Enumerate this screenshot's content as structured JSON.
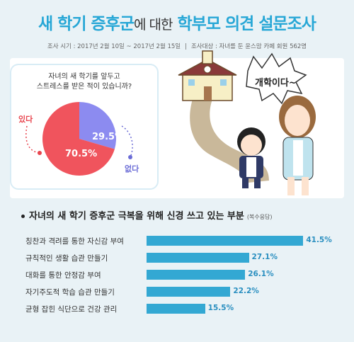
{
  "header": {
    "title_part1": "새 학기 증후군",
    "title_part2": "에 대한",
    "title_part3": "학부모 의견 설문조사",
    "survey_period": "조사 시기 : 2017년 2월 10일 ~ 2017년 2월 15일",
    "survey_target": "조사대상 : 자녀를 둔 윤스맘 카페 회원 562명"
  },
  "illustration": {
    "speech_text": "개학이다~"
  },
  "pie_section": {
    "question_line1": "자녀의 새 학기를 앞두고",
    "question_line2": "스트레스를 받은 적이 있습니까?",
    "yes_label": "있다",
    "no_label": "없다",
    "yes_pct_text": "70.5%",
    "no_pct_text": "29.5%"
  },
  "bar_section": {
    "title": "자녀의 새 학기 증후군 극복을 위해 신경 쓰고 있는 부분",
    "note": "(복수응답)",
    "rows": [
      {
        "label": "칭찬과 격려를 통한 자신감 부여",
        "value_text": "41.5%"
      },
      {
        "label": "규칙적인 생활 습관 만들기",
        "value_text": "27.1%"
      },
      {
        "label": "대화를 통한 안정감 부여",
        "value_text": "26.1%"
      },
      {
        "label": "자기주도적 학습 습관 만들기",
        "value_text": "22.2%"
      },
      {
        "label": "균형 잡힌 식단으로 건강 관리",
        "value_text": "15.5%"
      }
    ]
  },
  "colors": {
    "accent_blue": "#27a7d6",
    "bar_blue": "#33a8d3",
    "pie_yes": "#f0545d",
    "pie_no": "#8c8bf0"
  },
  "chart_data": [
    {
      "type": "pie",
      "categories": [
        "있다",
        "없다"
      ],
      "values": [
        70.5,
        29.5
      ]
    },
    {
      "type": "bar",
      "orientation": "horizontal",
      "categories": [
        "칭찬과 격려를 통한 자신감 부여",
        "규칙적인 생활 습관 만들기",
        "대화를 통한 안정감 부여",
        "자기주도적 학습 습관 만들기",
        "균형 잡힌 식단으로 건강 관리"
      ],
      "values": [
        41.5,
        27.1,
        26.1,
        22.2,
        15.5
      ],
      "xlim": [
        0,
        45
      ]
    }
  ]
}
